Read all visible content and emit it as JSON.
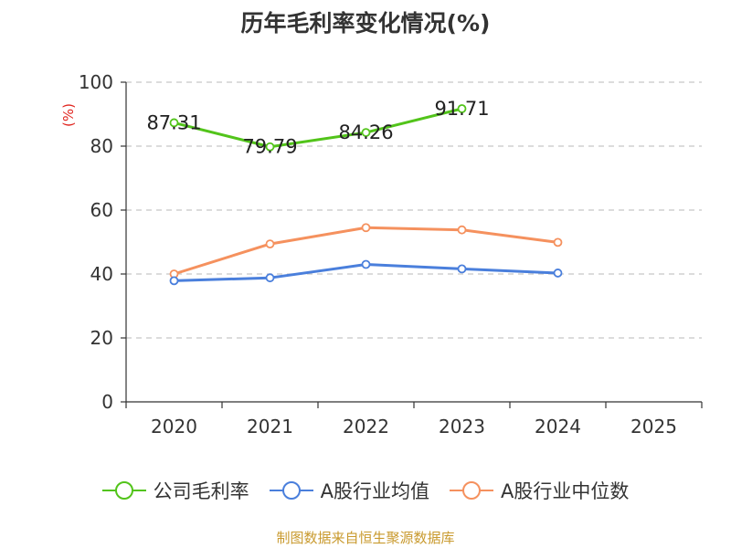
{
  "chart_data": {
    "type": "line",
    "title": "历年毛利率变化情况(%)",
    "ylabel": "(%)",
    "xlabel": "",
    "ylim": [
      0,
      100
    ],
    "yticks": [
      0,
      20,
      40,
      60,
      80,
      100
    ],
    "grid": true,
    "categories": [
      "2020",
      "2021",
      "2022",
      "2023",
      "2024",
      "2025"
    ],
    "legend_position": "bottom",
    "series": [
      {
        "name": "公司毛利率",
        "color": "#52c41a",
        "values": [
          87.31,
          79.79,
          84.26,
          91.71,
          null,
          null
        ],
        "data_labels": [
          "87.31",
          "79.79",
          "84.26",
          "91.71",
          null,
          null
        ]
      },
      {
        "name": "A股行业均值",
        "color": "#4a7fdc",
        "values": [
          37.9,
          38.8,
          43.0,
          41.6,
          40.3,
          null
        ],
        "data_labels": null
      },
      {
        "name": "A股行业中位数",
        "color": "#f5915e",
        "values": [
          40.0,
          49.4,
          54.5,
          53.8,
          49.9,
          null
        ],
        "data_labels": null
      }
    ],
    "source": "制图数据来自恒生聚源数据库"
  }
}
